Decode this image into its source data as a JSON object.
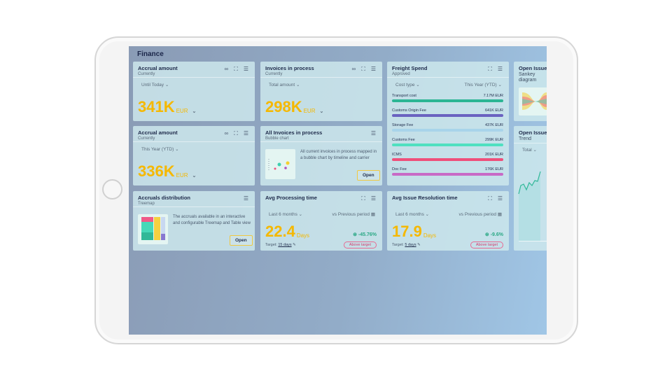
{
  "page": {
    "title": "Finance"
  },
  "cards": {
    "accrual1": {
      "title": "Accrual amount",
      "subtitle": "Currently",
      "filter": "Until Today",
      "value": "341K",
      "unit": "EUR"
    },
    "invoices": {
      "title": "Invoices in process",
      "subtitle": "Currently",
      "filter": "Total amount",
      "value": "298K",
      "unit": "EUR"
    },
    "accrual2": {
      "title": "Accrual amount",
      "subtitle": "Currently",
      "filter": "This Year (YTD)",
      "value": "336K",
      "unit": "EUR"
    },
    "bubble": {
      "title": "All Invoices in process",
      "subtitle": "Bubble chart",
      "description": "All current invoices in process mapped in a bubble chart by timeline and carrier",
      "open": "Open"
    },
    "treemap": {
      "title": "Accruals distribution",
      "subtitle": "Treemap",
      "description": "The accruals available in an interactive and configurable Treemap and Table view",
      "open": "Open"
    },
    "processing": {
      "title": "Avg Processing time",
      "filter": "Last 6 months",
      "compare": "vs Previous period",
      "value": "22.4",
      "unit": "Days",
      "change": "-45.76%",
      "target_label": "Target:",
      "target": "15 days",
      "status": "Above target"
    },
    "resolution": {
      "title": "Avg Issue Resolution time",
      "filter": "Last 6 months",
      "compare": "vs Previous period",
      "value": "17.9",
      "unit": "Days",
      "change": "-9.6%",
      "target_label": "Target:",
      "target": "5 days",
      "status": "Above target"
    },
    "freight": {
      "title": "Freight Spend",
      "subtitle": "Approved",
      "filter1": "Cost type",
      "filter2": "This Year (YTD)",
      "rows": [
        {
          "label": "Transport cost",
          "value": "7.17M EUR",
          "color": "#2bb594"
        },
        {
          "label": "Customs Origin Fee",
          "value": "641K EUR",
          "color": "#6a62c0"
        },
        {
          "label": "Storage Fee",
          "value": "437K EUR",
          "color": "#a8d4ea"
        },
        {
          "label": "Customs Fee",
          "value": "299K EUR",
          "color": "#4fe0c0"
        },
        {
          "label": "ICMS",
          "value": "201K EUR",
          "color": "#ef4f7a"
        },
        {
          "label": "Doc Fee",
          "value": "176K EUR",
          "color": "#c86ac6"
        }
      ]
    },
    "sankey": {
      "title": "Open Issues",
      "subtitle": "Sankey diagram"
    },
    "trend": {
      "title": "Open Issues",
      "subtitle": "Trend",
      "filter": "Total"
    }
  },
  "colors": {
    "accent": "#f5b800",
    "positive": "#2aa885",
    "warning": "#d6386a"
  }
}
